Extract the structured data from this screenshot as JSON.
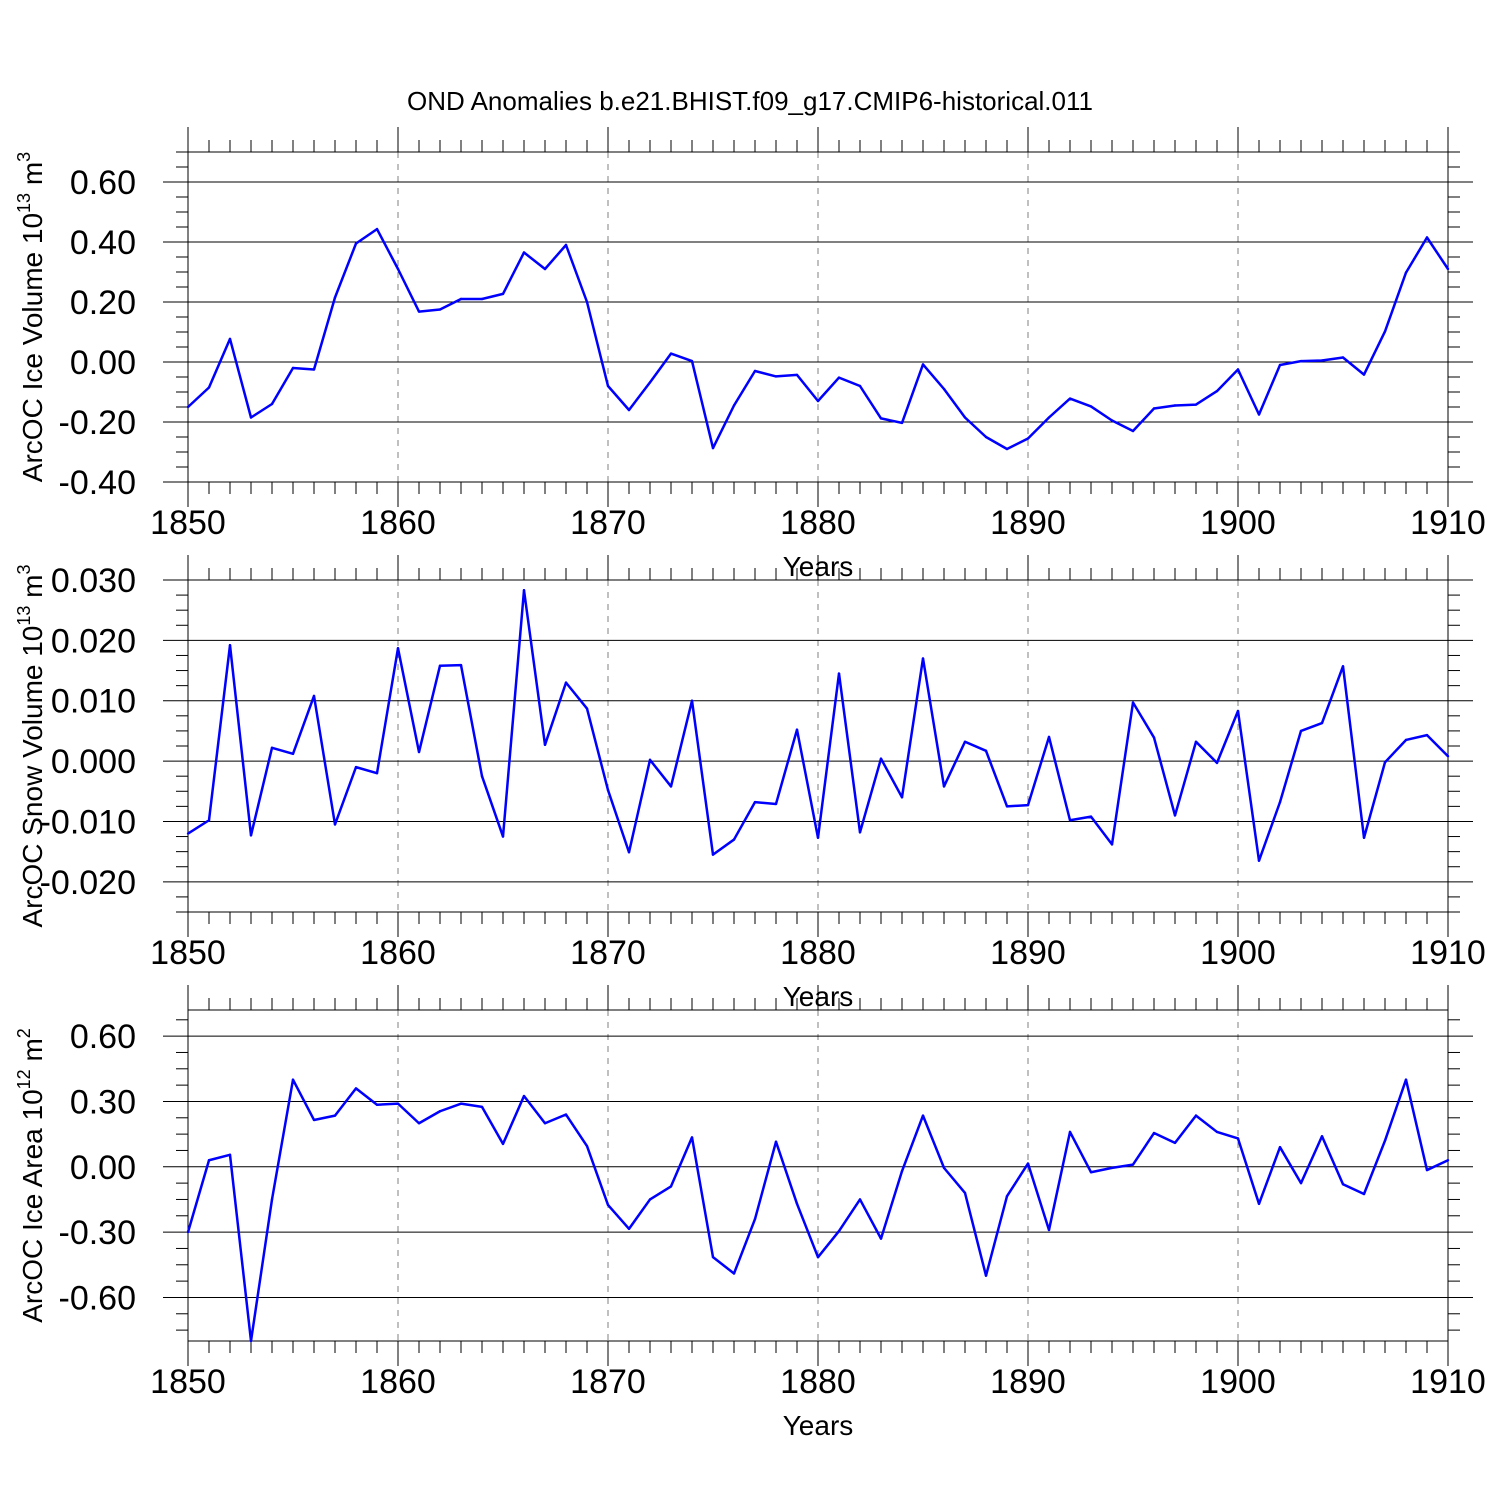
{
  "title": "OND Anomalies b.e21.BHIST.f09_g17.CMIP6-historical.011",
  "line_color": "#0000ff",
  "grid_color": "#808080",
  "chart_data": [
    {
      "type": "line",
      "ylabel_main": "ArcOC Ice Volume 10",
      "ylabel_exp": "13",
      "ylabel_unit": "m",
      "ylabel_unit_exp": "3",
      "xlabel": "Years",
      "xlim": [
        1850,
        1910
      ],
      "ylim": [
        -0.4,
        0.7
      ],
      "yticks": [
        -0.4,
        -0.2,
        0.0,
        0.2,
        0.4,
        0.6
      ],
      "ytick_labels": [
        "-0.40",
        "-0.20",
        "0.00",
        "0.20",
        "0.40",
        "0.60"
      ],
      "yminor_step": 0.05,
      "xticks": [
        1850,
        1860,
        1870,
        1880,
        1890,
        1900,
        1910
      ],
      "xtick_labels": [
        "1850",
        "1860",
        "1870",
        "1880",
        "1890",
        "1900",
        "1910"
      ],
      "x": [
        1850,
        1851,
        1852,
        1853,
        1854,
        1855,
        1856,
        1857,
        1858,
        1859,
        1860,
        1861,
        1862,
        1863,
        1864,
        1865,
        1866,
        1867,
        1868,
        1869,
        1870,
        1871,
        1872,
        1873,
        1874,
        1875,
        1876,
        1877,
        1878,
        1879,
        1880,
        1881,
        1882,
        1883,
        1884,
        1885,
        1886,
        1887,
        1888,
        1889,
        1890,
        1891,
        1892,
        1893,
        1894,
        1895,
        1896,
        1897,
        1898,
        1899,
        1900,
        1901,
        1902,
        1903,
        1904,
        1905,
        1906,
        1907,
        1908,
        1909,
        1910
      ],
      "series": [
        {
          "name": "ArcOC Ice Volume",
          "values": [
            -0.15,
            -0.085,
            0.077,
            -0.185,
            -0.14,
            -0.02,
            -0.025,
            0.215,
            0.395,
            0.443,
            0.31,
            0.168,
            0.175,
            0.21,
            0.21,
            0.227,
            0.365,
            0.31,
            0.39,
            0.2,
            -0.08,
            -0.16,
            -0.068,
            0.028,
            0.003,
            -0.287,
            -0.145,
            -0.03,
            -0.048,
            -0.043,
            -0.13,
            -0.052,
            -0.08,
            -0.188,
            -0.203,
            -0.008,
            -0.09,
            -0.185,
            -0.25,
            -0.29,
            -0.255,
            -0.185,
            -0.122,
            -0.148,
            -0.195,
            -0.23,
            -0.155,
            -0.145,
            -0.142,
            -0.097,
            -0.025,
            -0.175,
            -0.01,
            0.003,
            0.005,
            0.015,
            -0.042,
            0.102,
            0.298,
            0.415,
            0.31
          ]
        }
      ]
    },
    {
      "type": "line",
      "ylabel_main": "ArcOC Snow Volume 10",
      "ylabel_exp": "13",
      "ylabel_unit": "m",
      "ylabel_unit_exp": "3",
      "xlabel": "Years",
      "xlim": [
        1850,
        1910
      ],
      "ylim": [
        -0.025,
        0.03
      ],
      "yticks": [
        -0.02,
        -0.01,
        0.0,
        0.01,
        0.02,
        0.03
      ],
      "ytick_labels": [
        "-0.020",
        "-0.010",
        "0.000",
        "0.010",
        "0.020",
        "0.030"
      ],
      "yminor_step": 0.0025,
      "xticks": [
        1850,
        1860,
        1870,
        1880,
        1890,
        1900,
        1910
      ],
      "xtick_labels": [
        "1850",
        "1860",
        "1870",
        "1880",
        "1890",
        "1900",
        "1910"
      ],
      "x": [
        1850,
        1851,
        1852,
        1853,
        1854,
        1855,
        1856,
        1857,
        1858,
        1859,
        1860,
        1861,
        1862,
        1863,
        1864,
        1865,
        1866,
        1867,
        1868,
        1869,
        1870,
        1871,
        1872,
        1873,
        1874,
        1875,
        1876,
        1877,
        1878,
        1879,
        1880,
        1881,
        1882,
        1883,
        1884,
        1885,
        1886,
        1887,
        1888,
        1889,
        1890,
        1891,
        1892,
        1893,
        1894,
        1895,
        1896,
        1897,
        1898,
        1899,
        1900,
        1901,
        1902,
        1903,
        1904,
        1905,
        1906,
        1907,
        1908,
        1909,
        1910
      ],
      "series": [
        {
          "name": "ArcOC Snow Volume",
          "values": [
            -0.012,
            -0.0098,
            0.0192,
            -0.0123,
            0.0022,
            0.0012,
            0.0108,
            -0.0105,
            -0.001,
            -0.002,
            0.0187,
            0.0015,
            0.0158,
            0.0159,
            -0.0025,
            -0.0125,
            0.0283,
            0.0027,
            0.013,
            0.0087,
            -0.0048,
            -0.0151,
            0.0002,
            -0.0042,
            0.01,
            -0.0155,
            -0.013,
            -0.0068,
            -0.0071,
            0.0052,
            -0.0127,
            0.0145,
            -0.0118,
            0.0004,
            -0.006,
            0.017,
            -0.0042,
            0.0032,
            0.0017,
            -0.0075,
            -0.0073,
            0.004,
            -0.0098,
            -0.0092,
            -0.0138,
            0.0097,
            0.0039,
            -0.009,
            0.0032,
            -0.0003,
            0.0083,
            -0.0165,
            -0.0068,
            0.005,
            0.0063,
            0.0157,
            -0.0127,
            -0.0002,
            0.0035,
            0.0043,
            0.0008
          ]
        }
      ]
    },
    {
      "type": "line",
      "ylabel_main": "ArcOC Ice Area 10",
      "ylabel_exp": "12",
      "ylabel_unit": "m",
      "ylabel_unit_exp": "2",
      "xlabel": "Years",
      "xlim": [
        1850,
        1910
      ],
      "ylim": [
        -0.8,
        0.72
      ],
      "yticks": [
        -0.6,
        -0.3,
        0.0,
        0.3,
        0.6
      ],
      "ytick_labels": [
        "-0.60",
        "-0.30",
        "0.00",
        "0.30",
        "0.60"
      ],
      "yminor_step": 0.075,
      "xticks": [
        1850,
        1860,
        1870,
        1880,
        1890,
        1900,
        1910
      ],
      "xtick_labels": [
        "1850",
        "1860",
        "1870",
        "1880",
        "1890",
        "1900",
        "1910"
      ],
      "x": [
        1850,
        1851,
        1852,
        1853,
        1854,
        1855,
        1856,
        1857,
        1858,
        1859,
        1860,
        1861,
        1862,
        1863,
        1864,
        1865,
        1866,
        1867,
        1868,
        1869,
        1870,
        1871,
        1872,
        1873,
        1874,
        1875,
        1876,
        1877,
        1878,
        1879,
        1880,
        1881,
        1882,
        1883,
        1884,
        1885,
        1886,
        1887,
        1888,
        1889,
        1890,
        1891,
        1892,
        1893,
        1894,
        1895,
        1896,
        1897,
        1898,
        1899,
        1900,
        1901,
        1902,
        1903,
        1904,
        1905,
        1906,
        1907,
        1908,
        1909,
        1910
      ],
      "series": [
        {
          "name": "ArcOC Ice Area",
          "values": [
            -0.3,
            0.03,
            0.055,
            -0.8,
            -0.15,
            0.4,
            0.215,
            0.235,
            0.36,
            0.285,
            0.29,
            0.2,
            0.255,
            0.29,
            0.275,
            0.105,
            0.325,
            0.2,
            0.24,
            0.095,
            -0.175,
            -0.285,
            -0.15,
            -0.09,
            0.135,
            -0.415,
            -0.49,
            -0.24,
            0.115,
            -0.17,
            -0.415,
            -0.295,
            -0.15,
            -0.33,
            -0.02,
            0.235,
            -0.005,
            -0.12,
            -0.5,
            -0.135,
            0.015,
            -0.29,
            0.16,
            -0.025,
            -0.005,
            0.01,
            0.155,
            0.11,
            0.235,
            0.16,
            0.13,
            -0.17,
            0.09,
            -0.075,
            0.14,
            -0.08,
            -0.125,
            0.12,
            0.4,
            -0.015,
            0.03
          ]
        }
      ]
    }
  ]
}
